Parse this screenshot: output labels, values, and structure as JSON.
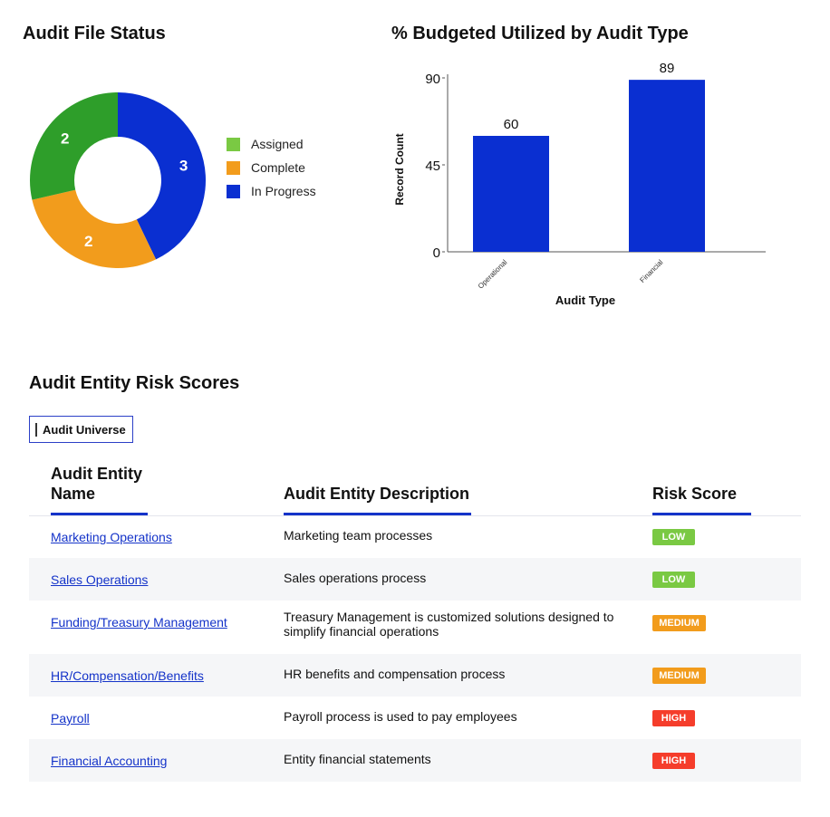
{
  "donut": {
    "title": "Audit File Status",
    "chart_data": {
      "type": "pie",
      "title": "Audit File Status",
      "slices": [
        {
          "label": "Assigned",
          "value": 2,
          "color": "#2e9e2a"
        },
        {
          "label": "Complete",
          "value": 2,
          "color": "#f29c1c"
        },
        {
          "label": "In Progress",
          "value": 3,
          "color": "#0a2fd1"
        }
      ],
      "legend_colors": [
        "#7ac943",
        "#f29c1c",
        "#0a2fd1"
      ],
      "legend_position": "right"
    }
  },
  "bar": {
    "title": "% Budgeted Utilized by Audit Type",
    "chart_data": {
      "type": "bar",
      "title": "% Budgeted Utilized by Audit Type",
      "categories": [
        "Operational",
        "Financial"
      ],
      "values": [
        60,
        89
      ],
      "xlabel": "Audit Type",
      "ylabel": "Record Count",
      "yticks": [
        0,
        45,
        90
      ],
      "ylim": [
        0,
        90
      ],
      "color": "#0a2fd1",
      "grid": false
    }
  },
  "risk": {
    "title": "Audit Entity Risk Scores",
    "tab_label": "Audit Universe",
    "headers": {
      "name": "Audit Entity Name",
      "name_line1": "Audit Entity",
      "name_line2": "Name",
      "description": "Audit Entity Description",
      "score": "Risk Score"
    },
    "rows": [
      {
        "name": "Marketing Operations",
        "description": "Marketing team processes",
        "score": "LOW",
        "score_color": "#7ac943"
      },
      {
        "name": "Sales Operations",
        "description": "Sales operations process",
        "score": "LOW",
        "score_color": "#7ac943"
      },
      {
        "name": "Funding/Treasury Management",
        "description": "Treasury Management is customized solutions designed to simplify financial operations",
        "score": "MEDIUM",
        "score_color": "#f29c1c"
      },
      {
        "name": "HR/Compensation/Benefits",
        "description": "HR benefits and compensation process",
        "score": "MEDIUM",
        "score_color": "#f29c1c"
      },
      {
        "name": "Payroll",
        "description": "Payroll process is used to pay employees",
        "score": "HIGH",
        "score_color": "#f53d2b"
      },
      {
        "name": "Financial Accounting",
        "description": "Entity financial statements",
        "score": "HIGH",
        "score_color": "#f53d2b"
      }
    ]
  }
}
